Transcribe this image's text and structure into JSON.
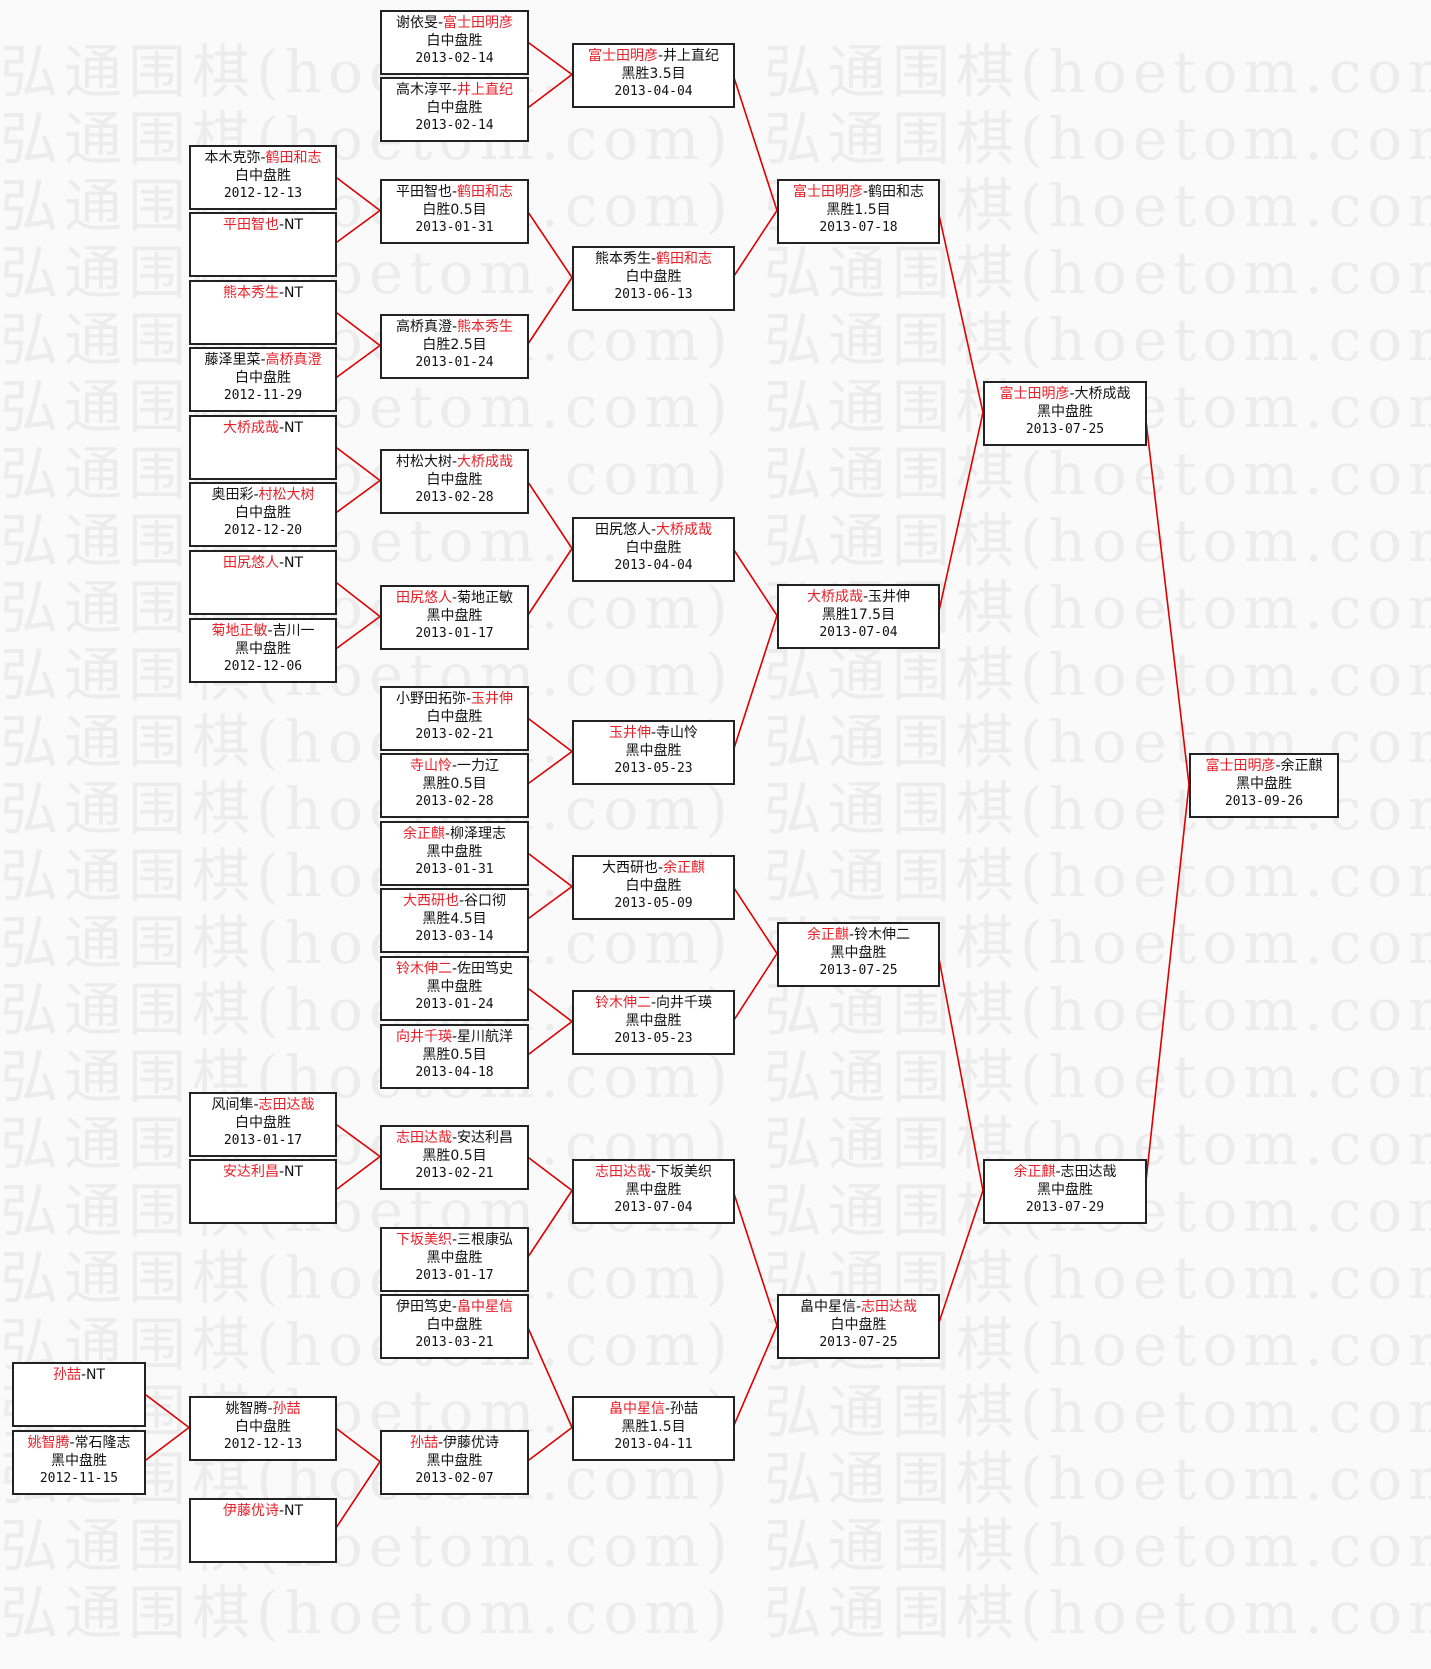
{
  "watermark": "弘通围棋(hoetom.com)",
  "colors": {
    "winner": "#e8202a",
    "link": "#e00000",
    "border": "#222222"
  },
  "matches": [
    {
      "p1": "谢依旻",
      "p2": "富士田明彦",
      "winner": 2,
      "result": "白中盘胜",
      "date": "2013-02-14",
      "feeds_into": 2
    },
    {
      "p1": "高木淳平",
      "p2": "井上直纪",
      "winner": 2,
      "result": "白中盘胜",
      "date": "2013-02-14",
      "feeds_into": 2
    },
    {
      "p1": "富士田明彦",
      "p2": "井上直纪",
      "winner": 1,
      "result": "黑胜3.5目",
      "date": "2013-04-04",
      "feeds_into": 10
    },
    {
      "p1": "本木克弥",
      "p2": "鹤田和志",
      "winner": 2,
      "result": "白中盘胜",
      "date": "2012-12-13",
      "feeds_into": 5
    },
    {
      "p1": "平田智也",
      "p2": "NT",
      "winner": 1,
      "result": "",
      "date": "",
      "feeds_into": 5
    },
    {
      "p1": "平田智也",
      "p2": "鹤田和志",
      "winner": 2,
      "result": "白胜0.5目",
      "date": "2013-01-31",
      "feeds_into": 9
    },
    {
      "p1": "熊本秀生",
      "p2": "NT",
      "winner": 1,
      "result": "",
      "date": "",
      "feeds_into": 8
    },
    {
      "p1": "藤泽里菜",
      "p2": "高桥真澄",
      "winner": 2,
      "result": "白中盘胜",
      "date": "2012-11-29",
      "feeds_into": 8
    },
    {
      "p1": "高桥真澄",
      "p2": "熊本秀生",
      "winner": 2,
      "result": "白胜2.5目",
      "date": "2013-01-24",
      "feeds_into": 9
    },
    {
      "p1": "熊本秀生",
      "p2": "鹤田和志",
      "winner": 2,
      "result": "白中盘胜",
      "date": "2013-06-13",
      "feeds_into": 10
    },
    {
      "p1": "富士田明彦",
      "p2": "鹤田和志",
      "winner": 1,
      "result": "黑胜1.5目",
      "date": "2013-07-18",
      "feeds_into": 22
    },
    {
      "p1": "大桥成哉",
      "p2": "NT",
      "winner": 1,
      "result": "",
      "date": "",
      "feeds_into": 13
    },
    {
      "p1": "奥田彩",
      "p2": "村松大树",
      "winner": 2,
      "result": "白中盘胜",
      "date": "2012-12-20",
      "feeds_into": 13
    },
    {
      "p1": "村松大树",
      "p2": "大桥成哉",
      "winner": 2,
      "result": "白中盘胜",
      "date": "2013-02-28",
      "feeds_into": 17
    },
    {
      "p1": "田尻悠人",
      "p2": "NT",
      "winner": 1,
      "result": "",
      "date": "",
      "feeds_into": 16
    },
    {
      "p1": "菊地正敏",
      "p2": "吉川一",
      "winner": 1,
      "result": "黑中盘胜",
      "date": "2012-12-06",
      "feeds_into": 16
    },
    {
      "p1": "田尻悠人",
      "p2": "菊地正敏",
      "winner": 1,
      "result": "黑中盘胜",
      "date": "2013-01-17",
      "feeds_into": 17
    },
    {
      "p1": "田尻悠人",
      "p2": "大桥成哉",
      "winner": 2,
      "result": "白中盘胜",
      "date": "2013-04-04",
      "feeds_into": 21
    },
    {
      "p1": "小野田拓弥",
      "p2": "玉井伸",
      "winner": 2,
      "result": "白中盘胜",
      "date": "2013-02-21",
      "feeds_into": 20
    },
    {
      "p1": "寺山怜",
      "p2": "一力辽",
      "winner": 1,
      "result": "黑胜0.5目",
      "date": "2013-02-28",
      "feeds_into": 20
    },
    {
      "p1": "玉井伸",
      "p2": "寺山怜",
      "winner": 1,
      "result": "黑中盘胜",
      "date": "2013-05-23",
      "feeds_into": 21
    },
    {
      "p1": "大桥成哉",
      "p2": "玉井伸",
      "winner": 1,
      "result": "黑胜17.5目",
      "date": "2013-07-04",
      "feeds_into": 22
    },
    {
      "p1": "富士田明彦",
      "p2": "大桥成哉",
      "winner": 1,
      "result": "黑中盘胜",
      "date": "2013-07-25",
      "feeds_into": 44
    },
    {
      "p1": "余正麒",
      "p2": "柳泽理志",
      "winner": 1,
      "result": "黑中盘胜",
      "date": "2013-01-31",
      "feeds_into": 25
    },
    {
      "p1": "大西研也",
      "p2": "谷口彻",
      "winner": 1,
      "result": "黑胜4.5目",
      "date": "2013-03-14",
      "feeds_into": 25
    },
    {
      "p1": "大西研也",
      "p2": "余正麒",
      "winner": 2,
      "result": "白中盘胜",
      "date": "2013-05-09",
      "feeds_into": 29
    },
    {
      "p1": "铃木伸二",
      "p2": "佐田笃史",
      "winner": 1,
      "result": "黑中盘胜",
      "date": "2013-01-24",
      "feeds_into": 28
    },
    {
      "p1": "向井千瑛",
      "p2": "星川航洋",
      "winner": 1,
      "result": "黑胜0.5目",
      "date": "2013-04-18",
      "feeds_into": 28
    },
    {
      "p1": "铃木伸二",
      "p2": "向井千瑛",
      "winner": 1,
      "result": "黑中盘胜",
      "date": "2013-05-23",
      "feeds_into": 29
    },
    {
      "p1": "余正麒",
      "p2": "铃木伸二",
      "winner": 1,
      "result": "黑中盘胜",
      "date": "2013-07-25",
      "feeds_into": 43
    },
    {
      "p1": "风间隼",
      "p2": "志田达哉",
      "winner": 2,
      "result": "白中盘胜",
      "date": "2013-01-17",
      "feeds_into": 32
    },
    {
      "p1": "安达利昌",
      "p2": "NT",
      "winner": 1,
      "result": "",
      "date": "",
      "feeds_into": 32
    },
    {
      "p1": "志田达哉",
      "p2": "安达利昌",
      "winner": 1,
      "result": "黑胜0.5目",
      "date": "2013-02-21",
      "feeds_into": 34
    },
    {
      "p1": "下坂美织",
      "p2": "三根康弘",
      "winner": 1,
      "result": "黑中盘胜",
      "date": "2013-01-17",
      "feeds_into": 34
    },
    {
      "p1": "志田达哉",
      "p2": "下坂美织",
      "winner": 1,
      "result": "黑中盘胜",
      "date": "2013-07-04",
      "feeds_into": 42
    },
    {
      "p1": "伊田笃史",
      "p2": "畠中星信",
      "winner": 2,
      "result": "白中盘胜",
      "date": "2013-03-21",
      "feeds_into": 41
    },
    {
      "p1": "孙喆",
      "p2": "NT",
      "winner": 1,
      "result": "",
      "date": "",
      "feeds_into": 38
    },
    {
      "p1": "姚智腾",
      "p2": "常石隆志",
      "winner": 1,
      "result": "黑中盘胜",
      "date": "2012-11-15",
      "feeds_into": 38
    },
    {
      "p1": "姚智腾",
      "p2": "孙喆",
      "winner": 2,
      "result": "白中盘胜",
      "date": "2012-12-13",
      "feeds_into": 40
    },
    {
      "p1": "伊藤优诗",
      "p2": "NT",
      "winner": 1,
      "result": "",
      "date": "",
      "feeds_into": 40
    },
    {
      "p1": "孙喆",
      "p2": "伊藤优诗",
      "winner": 1,
      "result": "黑中盘胜",
      "date": "2013-02-07",
      "feeds_into": 41
    },
    {
      "p1": "畠中星信",
      "p2": "孙喆",
      "winner": 1,
      "result": "黑胜1.5目",
      "date": "2013-04-11",
      "feeds_into": 42
    },
    {
      "p1": "畠中星信",
      "p2": "志田达哉",
      "winner": 2,
      "result": "白中盘胜",
      "date": "2013-07-25",
      "feeds_into": 43
    },
    {
      "p1": "余正麒",
      "p2": "志田达哉",
      "winner": 1,
      "result": "黑中盘胜",
      "date": "2013-07-29",
      "feeds_into": 44
    },
    {
      "p1": "富士田明彦",
      "p2": "余正麒",
      "winner": 1,
      "result": "黑中盘胜",
      "date": "2013-09-26",
      "feeds_into": null
    }
  ]
}
